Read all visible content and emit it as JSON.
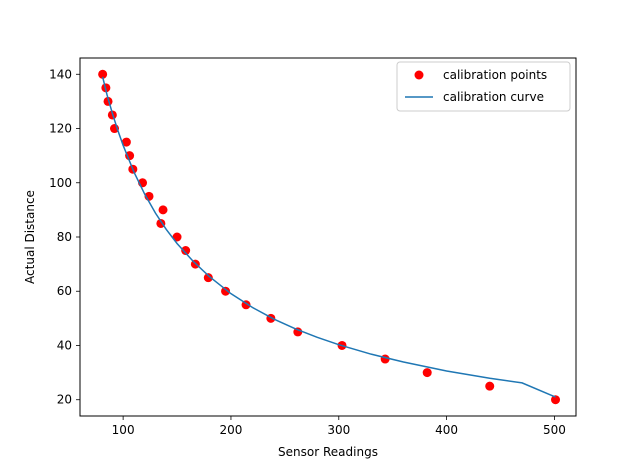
{
  "chart_data": {
    "type": "scatter",
    "xlabel": "Sensor Readings",
    "ylabel": "Actual Distance",
    "xlim": [
      60,
      520
    ],
    "ylim": [
      14,
      146
    ],
    "xticks": [
      100,
      200,
      300,
      400,
      500
    ],
    "yticks": [
      20,
      40,
      60,
      80,
      100,
      120,
      140
    ],
    "grid": false,
    "legend_position": "top-right",
    "series": [
      {
        "name": "calibration points",
        "type": "scatter",
        "color": "#ff0000",
        "x": [
          81,
          84,
          86,
          90,
          92,
          103,
          106,
          109,
          118,
          124,
          135,
          137,
          150,
          158,
          167,
          179,
          195,
          214,
          237,
          262,
          303,
          343,
          382,
          440,
          501
        ],
        "y": [
          140,
          135,
          130,
          125,
          120,
          115,
          110,
          105,
          100,
          95,
          85,
          90,
          80,
          75,
          70,
          65,
          60,
          55,
          50,
          45,
          40,
          35,
          30,
          25,
          20
        ]
      },
      {
        "name": "calibration curve",
        "type": "line",
        "color": "#1f77b4",
        "x": [
          81,
          85,
          90,
          95,
          100,
          110,
          120,
          130,
          140,
          150,
          165,
          180,
          200,
          220,
          240,
          260,
          280,
          300,
          330,
          360,
          400,
          440,
          470,
          501
        ],
        "y": [
          139,
          132.5,
          125.6,
          119.4,
          113.8,
          104,
          95.8,
          88.8,
          82.8,
          77.6,
          71,
          65.4,
          59.1,
          54,
          49.7,
          46.1,
          43,
          40.3,
          36.8,
          33.9,
          30.6,
          27.9,
          26.2,
          21
        ]
      }
    ]
  }
}
